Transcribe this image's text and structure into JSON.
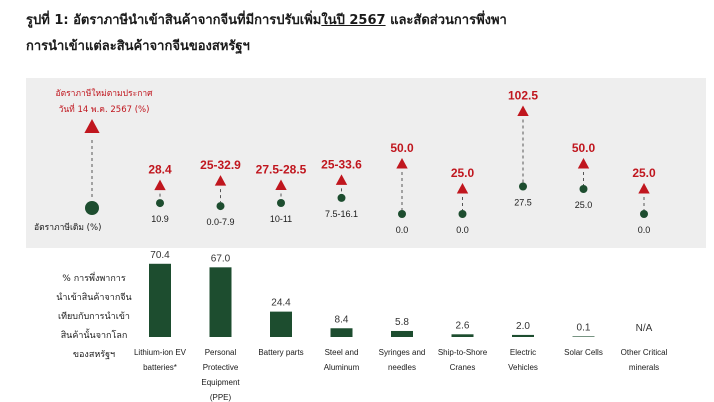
{
  "title": {
    "prefix": "รูปที่ 1:  อัตราภาษีนำเข้าสินค้าจากจีนที่มีการปรับเพิ่ม",
    "underlined": "ในปี 2567",
    "suffix": "  และสัดส่วนการพึ่งพา",
    "line2": "การนำเข้าแต่ละสินค้าจากจีนของสหรัฐฯ"
  },
  "legend": {
    "new_rate_line1": "อัตราภาษีใหม่ตามประกาศ",
    "new_rate_line2": "วันที่ 14 พ.ค. 2567 (%)",
    "old_rate": "อัตราภาษีเดิม (%)",
    "dependency_lines": [
      "% การพึ่งพาการ",
      "นำเข้าสินค้าจากจีน",
      "เทียบกับการนำเข้า",
      "สินค้านั้นจากโลก",
      "ของสหรัฐฯ"
    ]
  },
  "colors": {
    "new_rate": "#c0161e",
    "old_rate": "#1d4d2f",
    "bar": "#1d4d2f",
    "panel": "#eeeeee"
  },
  "chart_data": [
    {
      "type": "scatter",
      "categories": [
        "Lithium-ion EV batteries*",
        "Personal Protective Equipment (PPE)",
        "Battery parts",
        "Steel and Aluminum",
        "Syringes and needles",
        "Ship-to-Shore Cranes",
        "Electric Vehicles",
        "Solar Cells",
        "Other Critical minerals"
      ],
      "series": [
        {
          "name": "อัตราภาษีใหม่ตามประกาศ วันที่ 14 พ.ค. 2567 (%)",
          "labels": [
            "28.4",
            "25-32.9",
            "27.5-28.5",
            "25-33.6",
            "50.0",
            "25.0",
            "102.5",
            "50.0",
            "25.0"
          ],
          "values": [
            28.4,
            32.9,
            28.5,
            33.6,
            50.0,
            25.0,
            102.5,
            50.0,
            25.0
          ]
        },
        {
          "name": "อัตราภาษีเดิม (%)",
          "labels": [
            "10.9",
            "0.0-7.9",
            "10-11",
            "7.5-16.1",
            "0.0",
            "0.0",
            "27.5",
            "25.0",
            "0.0"
          ],
          "values": [
            10.9,
            7.9,
            11,
            16.1,
            0.0,
            0.0,
            27.5,
            25.0,
            0.0
          ]
        }
      ]
    },
    {
      "type": "bar",
      "categories": [
        "Lithium-ion EV batteries*",
        "Personal Protective Equipment (PPE)",
        "Battery parts",
        "Steel and Aluminum",
        "Syringes and needles",
        "Ship-to-Shore Cranes",
        "Electric Vehicles",
        "Solar Cells",
        "Other Critical minerals"
      ],
      "category_lines": [
        [
          "Lithium-ion EV",
          "batteries*"
        ],
        [
          "Personal",
          "Protective",
          "Equipment",
          "(PPE)"
        ],
        [
          "Battery parts"
        ],
        [
          "Steel and",
          "Aluminum"
        ],
        [
          "Syringes and",
          "needles"
        ],
        [
          "Ship-to-Shore",
          "Cranes"
        ],
        [
          "Electric",
          "Vehicles"
        ],
        [
          "Solar Cells"
        ],
        [
          "Other Critical",
          "minerals"
        ]
      ],
      "values": [
        70.4,
        67.0,
        24.4,
        8.4,
        5.8,
        2.6,
        2.0,
        0.1,
        null
      ],
      "labels": [
        "70.4",
        "67.0",
        "24.4",
        "8.4",
        "5.8",
        "2.6",
        "2.0",
        "0.1",
        "N/A"
      ]
    }
  ]
}
